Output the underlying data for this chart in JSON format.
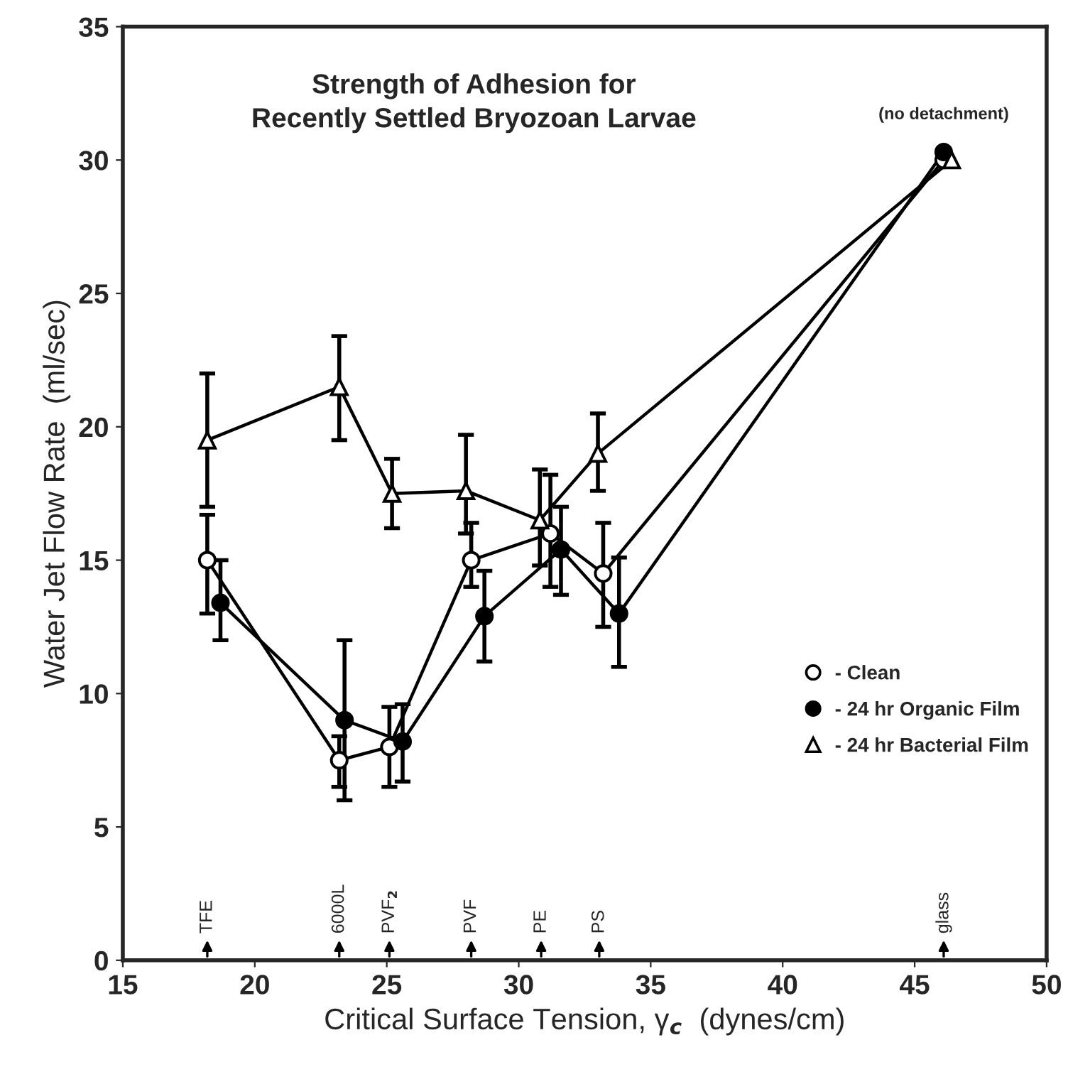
{
  "chart_data": {
    "type": "line",
    "title": "Strength of Adhesion for\nRecently Settled Bryozoan Larvae",
    "xlabel": "Critical Surface Tension, γ$_{c}$  (dynes/cm)",
    "ylabel": "Water Jet Flow Rate  (ml/sec)",
    "xlim": [
      15,
      50
    ],
    "ylim": [
      0,
      35
    ],
    "xticks": [
      15,
      20,
      25,
      30,
      35,
      40,
      45,
      50
    ],
    "yticks": [
      0,
      5,
      10,
      15,
      20,
      25,
      30,
      35
    ],
    "grid": false,
    "legend": "bottom right",
    "series": [
      {
        "name": "- Clean",
        "color": "#000000",
        "marker": "circle",
        "colors": [
          "#ffffff",
          "#ffffff",
          "#ffffff",
          "#ffffff",
          "#ffffff",
          "#ffffff",
          "#ffffff"
        ],
        "x": [
          18.2,
          23.2,
          25.1,
          28.2,
          31.2,
          33.2,
          46.1
        ],
        "values": [
          15.0,
          7.5,
          8.0,
          15.0,
          16.0,
          14.5,
          30.0
        ],
        "errors": [
          [
            13.0,
            16.7
          ],
          [
            6.5,
            8.4
          ],
          [
            6.5,
            9.5
          ],
          [
            14.0,
            16.4
          ],
          [
            14.0,
            18.2
          ],
          [
            12.5,
            16.4
          ],
          null
        ]
      },
      {
        "name": "- 24 hr Organic Film",
        "color": "#000000",
        "marker": "circle",
        "colors": [
          "#000000",
          "#000000",
          "#000000",
          "#000000",
          "#000000",
          "#000000",
          "#000000"
        ],
        "x": [
          18.7,
          23.4,
          25.6,
          28.7,
          31.6,
          33.8,
          46.1
        ],
        "values": [
          13.4,
          9.0,
          8.2,
          12.9,
          15.4,
          13.0,
          30.3
        ],
        "errors": [
          [
            12.0,
            15.0
          ],
          [
            6.0,
            12.0
          ],
          [
            6.7,
            9.6
          ],
          [
            11.2,
            14.6
          ],
          [
            13.7,
            17.0
          ],
          [
            11.0,
            15.1
          ],
          null
        ]
      },
      {
        "name": "- 24 hr Bacterial Film",
        "color": "#000000",
        "marker": "triangle",
        "colors": [
          "#ffffff",
          "#ffffff",
          "#ffffff",
          "#ffffff",
          "#ffffff",
          "#ffffff",
          "#ffffff"
        ],
        "x": [
          18.2,
          23.2,
          25.2,
          28.0,
          30.8,
          33.0,
          46.4
        ],
        "values": [
          19.5,
          21.5,
          17.5,
          17.6,
          16.5,
          19.0,
          30.0
        ],
        "errors": [
          [
            17.0,
            22.0
          ],
          [
            19.5,
            23.4
          ],
          [
            16.2,
            18.8
          ],
          [
            16.0,
            19.7
          ],
          [
            14.8,
            18.4
          ],
          [
            17.6,
            20.5
          ],
          null
        ]
      }
    ],
    "annotations": [
      {
        "text": "(no detachment)",
        "x": 46.1,
        "y": 30.3
      },
      {
        "text": "TFE",
        "x": 18.2
      },
      {
        "text": "6000L",
        "x": 23.2
      },
      {
        "text": "PVF$_{2}$",
        "x": 25.1
      },
      {
        "text": "PVF",
        "x": 28.2
      },
      {
        "text": "PE",
        "x": 30.85
      },
      {
        "text": "PS",
        "x": 33.05
      },
      {
        "text": "glass",
        "x": 46.1
      }
    ]
  }
}
